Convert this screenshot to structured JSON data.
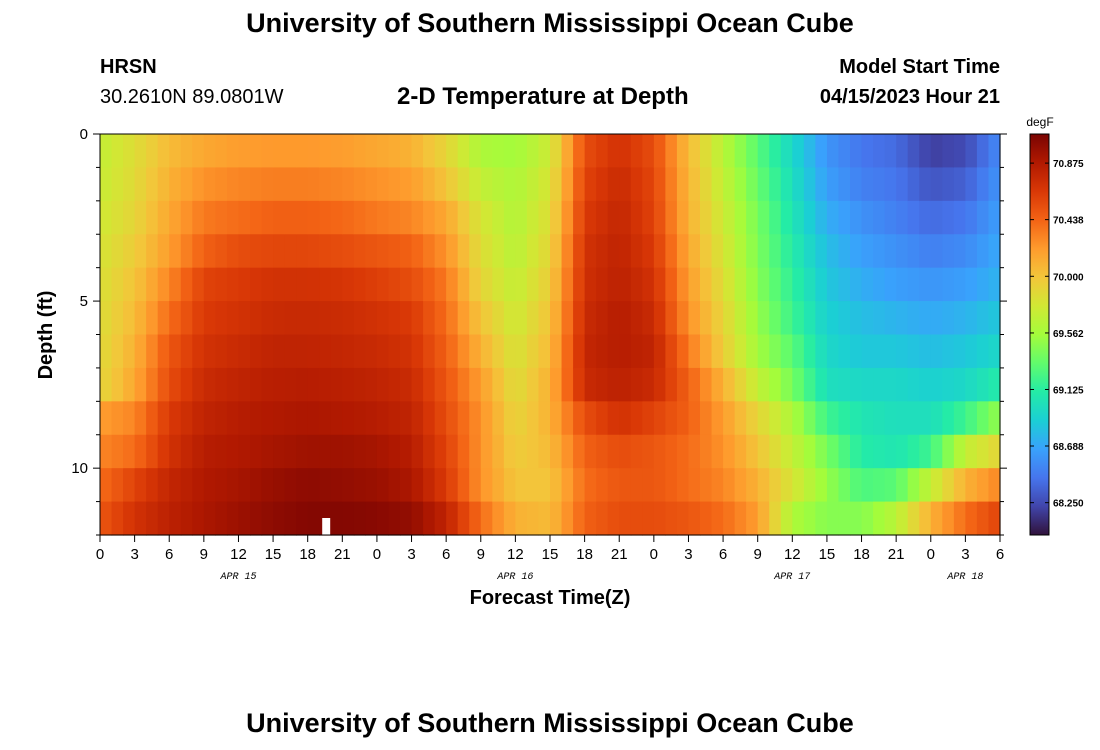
{
  "page": {
    "title": "University of Southern Mississippi Ocean Cube",
    "footer_title": "University of Southern Mississippi Ocean Cube",
    "station": "HRSN",
    "coords": "30.2610N  89.0801W",
    "subtitle": "2-D Temperature at Depth",
    "model_start_label": "Model Start Time",
    "model_start_value": "04/15/2023 Hour 21"
  },
  "colors": {
    "colormap": [
      "#30123b",
      "#4145ab",
      "#4675ed",
      "#39a2fc",
      "#1bcfd4",
      "#24eca6",
      "#61fc6c",
      "#a4fc3b",
      "#d1e834",
      "#f3c63a",
      "#fe9b2d",
      "#f36315",
      "#d93806",
      "#b11901",
      "#7a0402"
    ],
    "marker": "#ffffff"
  },
  "chart_data": {
    "type": "heatmap",
    "title": "2-D Temperature at Depth",
    "xlabel": "Forecast Time(Z)",
    "ylabel": "Depth (ft)",
    "x_hours": [
      0,
      78
    ],
    "x_tick_step_hours": 3,
    "x_tick_labels": [
      "0",
      "3",
      "6",
      "9",
      "12",
      "15",
      "18",
      "21",
      "0",
      "3",
      "6",
      "9",
      "12",
      "15",
      "18",
      "21",
      "0",
      "3",
      "6",
      "9",
      "12",
      "15",
      "18",
      "21",
      "0",
      "3",
      "6"
    ],
    "date_labels": [
      {
        "text": "APR 15",
        "hour": 12
      },
      {
        "text": "APR 16",
        "hour": 36
      },
      {
        "text": "APR 17",
        "hour": 60
      },
      {
        "text": "APR 18",
        "hour": 75
      }
    ],
    "ylim": [
      0,
      12
    ],
    "y_tick_values": [
      0,
      5,
      10
    ],
    "y_tick_labels": [
      "0",
      "5",
      "10"
    ],
    "depth_levels_ft": [
      0.5,
      1.5,
      2.5,
      3.5,
      4.5,
      5.5,
      6.5,
      7.5,
      8.5,
      9.5,
      10.5,
      11.5
    ],
    "time_columns": 78,
    "color_range": [
      68.0,
      71.1
    ],
    "colorbar_unit": "degF",
    "colorbar_ticks": [
      "70.875",
      "70.438",
      "70.000",
      "69.562",
      "69.125",
      "68.688",
      "68.250"
    ],
    "colorbar_tick_values": [
      70.875,
      70.438,
      70.0,
      69.562,
      69.125,
      68.688,
      68.25
    ],
    "current_time_marker_hour": 19.6,
    "profile_time_hours": [
      0,
      3,
      6,
      9,
      12,
      15,
      18,
      21,
      24,
      27,
      30,
      33,
      36,
      39,
      42,
      45,
      48,
      51,
      54,
      57,
      60,
      63,
      66,
      69,
      72,
      75,
      78
    ],
    "profiles_surface_to_bottom_degF": [
      [
        69.7,
        69.72,
        69.76,
        69.8,
        69.83,
        69.84,
        69.86,
        69.88,
        70.2,
        70.3,
        70.4,
        70.5
      ],
      [
        69.85,
        69.87,
        69.9,
        69.95,
        70.0,
        70.05,
        70.1,
        70.15,
        70.3,
        70.4,
        70.6,
        70.7
      ],
      [
        70.05,
        70.1,
        70.15,
        70.2,
        70.3,
        70.4,
        70.5,
        70.55,
        70.65,
        70.7,
        70.78,
        70.82
      ],
      [
        70.15,
        70.25,
        70.35,
        70.45,
        70.6,
        70.65,
        70.7,
        70.75,
        70.8,
        70.85,
        70.88,
        70.9
      ],
      [
        70.2,
        70.3,
        70.4,
        70.55,
        70.65,
        70.7,
        70.75,
        70.8,
        70.85,
        70.88,
        70.92,
        70.96
      ],
      [
        70.22,
        70.33,
        70.45,
        70.58,
        70.7,
        70.75,
        70.8,
        70.84,
        70.88,
        70.92,
        70.98,
        71.02
      ],
      [
        70.22,
        70.33,
        70.45,
        70.58,
        70.7,
        70.76,
        70.8,
        70.85,
        70.9,
        70.95,
        71.02,
        71.06
      ],
      [
        70.2,
        70.3,
        70.42,
        70.55,
        70.68,
        70.74,
        70.78,
        70.83,
        70.88,
        70.95,
        71.0,
        71.06
      ],
      [
        70.15,
        70.25,
        70.35,
        70.5,
        70.62,
        70.7,
        70.75,
        70.8,
        70.85,
        70.92,
        70.97,
        71.04
      ],
      [
        70.1,
        70.2,
        70.3,
        70.45,
        70.55,
        70.65,
        70.7,
        70.75,
        70.8,
        70.85,
        70.9,
        71.0
      ],
      [
        69.9,
        70.0,
        70.15,
        70.25,
        70.35,
        70.4,
        70.45,
        70.5,
        70.55,
        70.6,
        70.65,
        70.8
      ],
      [
        69.6,
        69.7,
        69.8,
        69.85,
        69.9,
        70.0,
        70.1,
        70.2,
        70.25,
        70.25,
        70.25,
        70.4
      ],
      [
        69.55,
        69.6,
        69.62,
        69.65,
        69.7,
        69.75,
        69.8,
        69.85,
        69.9,
        69.95,
        70.0,
        70.1
      ],
      [
        69.75,
        69.8,
        69.85,
        69.9,
        69.95,
        70.0,
        70.05,
        70.1,
        70.1,
        70.05,
        70.0,
        70.05
      ],
      [
        70.55,
        70.6,
        70.65,
        70.7,
        70.72,
        70.75,
        70.78,
        70.75,
        70.55,
        70.45,
        70.4,
        70.45
      ],
      [
        70.7,
        70.75,
        70.78,
        70.8,
        70.82,
        70.85,
        70.85,
        70.82,
        70.7,
        70.55,
        70.5,
        70.55
      ],
      [
        70.55,
        70.58,
        70.6,
        70.65,
        70.7,
        70.75,
        70.8,
        70.75,
        70.6,
        70.5,
        70.5,
        70.55
      ],
      [
        70.05,
        70.08,
        70.1,
        70.15,
        70.2,
        70.25,
        70.35,
        70.45,
        70.45,
        70.4,
        70.4,
        70.5
      ],
      [
        69.65,
        69.7,
        69.75,
        69.8,
        69.85,
        69.9,
        69.95,
        70.1,
        70.2,
        70.25,
        70.3,
        70.4
      ],
      [
        69.3,
        69.35,
        69.4,
        69.42,
        69.45,
        69.5,
        69.55,
        69.7,
        69.9,
        70.0,
        70.1,
        70.2
      ],
      [
        68.95,
        69.0,
        69.05,
        69.1,
        69.15,
        69.2,
        69.3,
        69.4,
        69.6,
        69.7,
        69.8,
        69.6
      ],
      [
        68.6,
        68.65,
        68.72,
        68.8,
        68.85,
        68.9,
        68.95,
        69.0,
        69.2,
        69.4,
        69.5,
        69.45
      ],
      [
        68.45,
        68.5,
        68.58,
        68.65,
        68.72,
        68.8,
        68.85,
        68.95,
        69.05,
        69.1,
        69.25,
        69.45
      ],
      [
        68.4,
        68.45,
        68.5,
        68.58,
        68.65,
        68.75,
        68.85,
        68.95,
        69.0,
        69.05,
        69.3,
        69.65
      ],
      [
        68.2,
        68.3,
        68.4,
        68.5,
        68.6,
        68.7,
        68.8,
        68.9,
        69.0,
        69.2,
        69.7,
        70.1
      ],
      [
        68.25,
        68.35,
        68.45,
        68.55,
        68.65,
        68.75,
        68.85,
        68.95,
        69.2,
        69.7,
        70.1,
        70.4
      ],
      [
        68.55,
        68.6,
        68.65,
        68.7,
        68.75,
        68.85,
        68.95,
        69.1,
        69.5,
        69.9,
        70.3,
        70.6
      ]
    ]
  }
}
